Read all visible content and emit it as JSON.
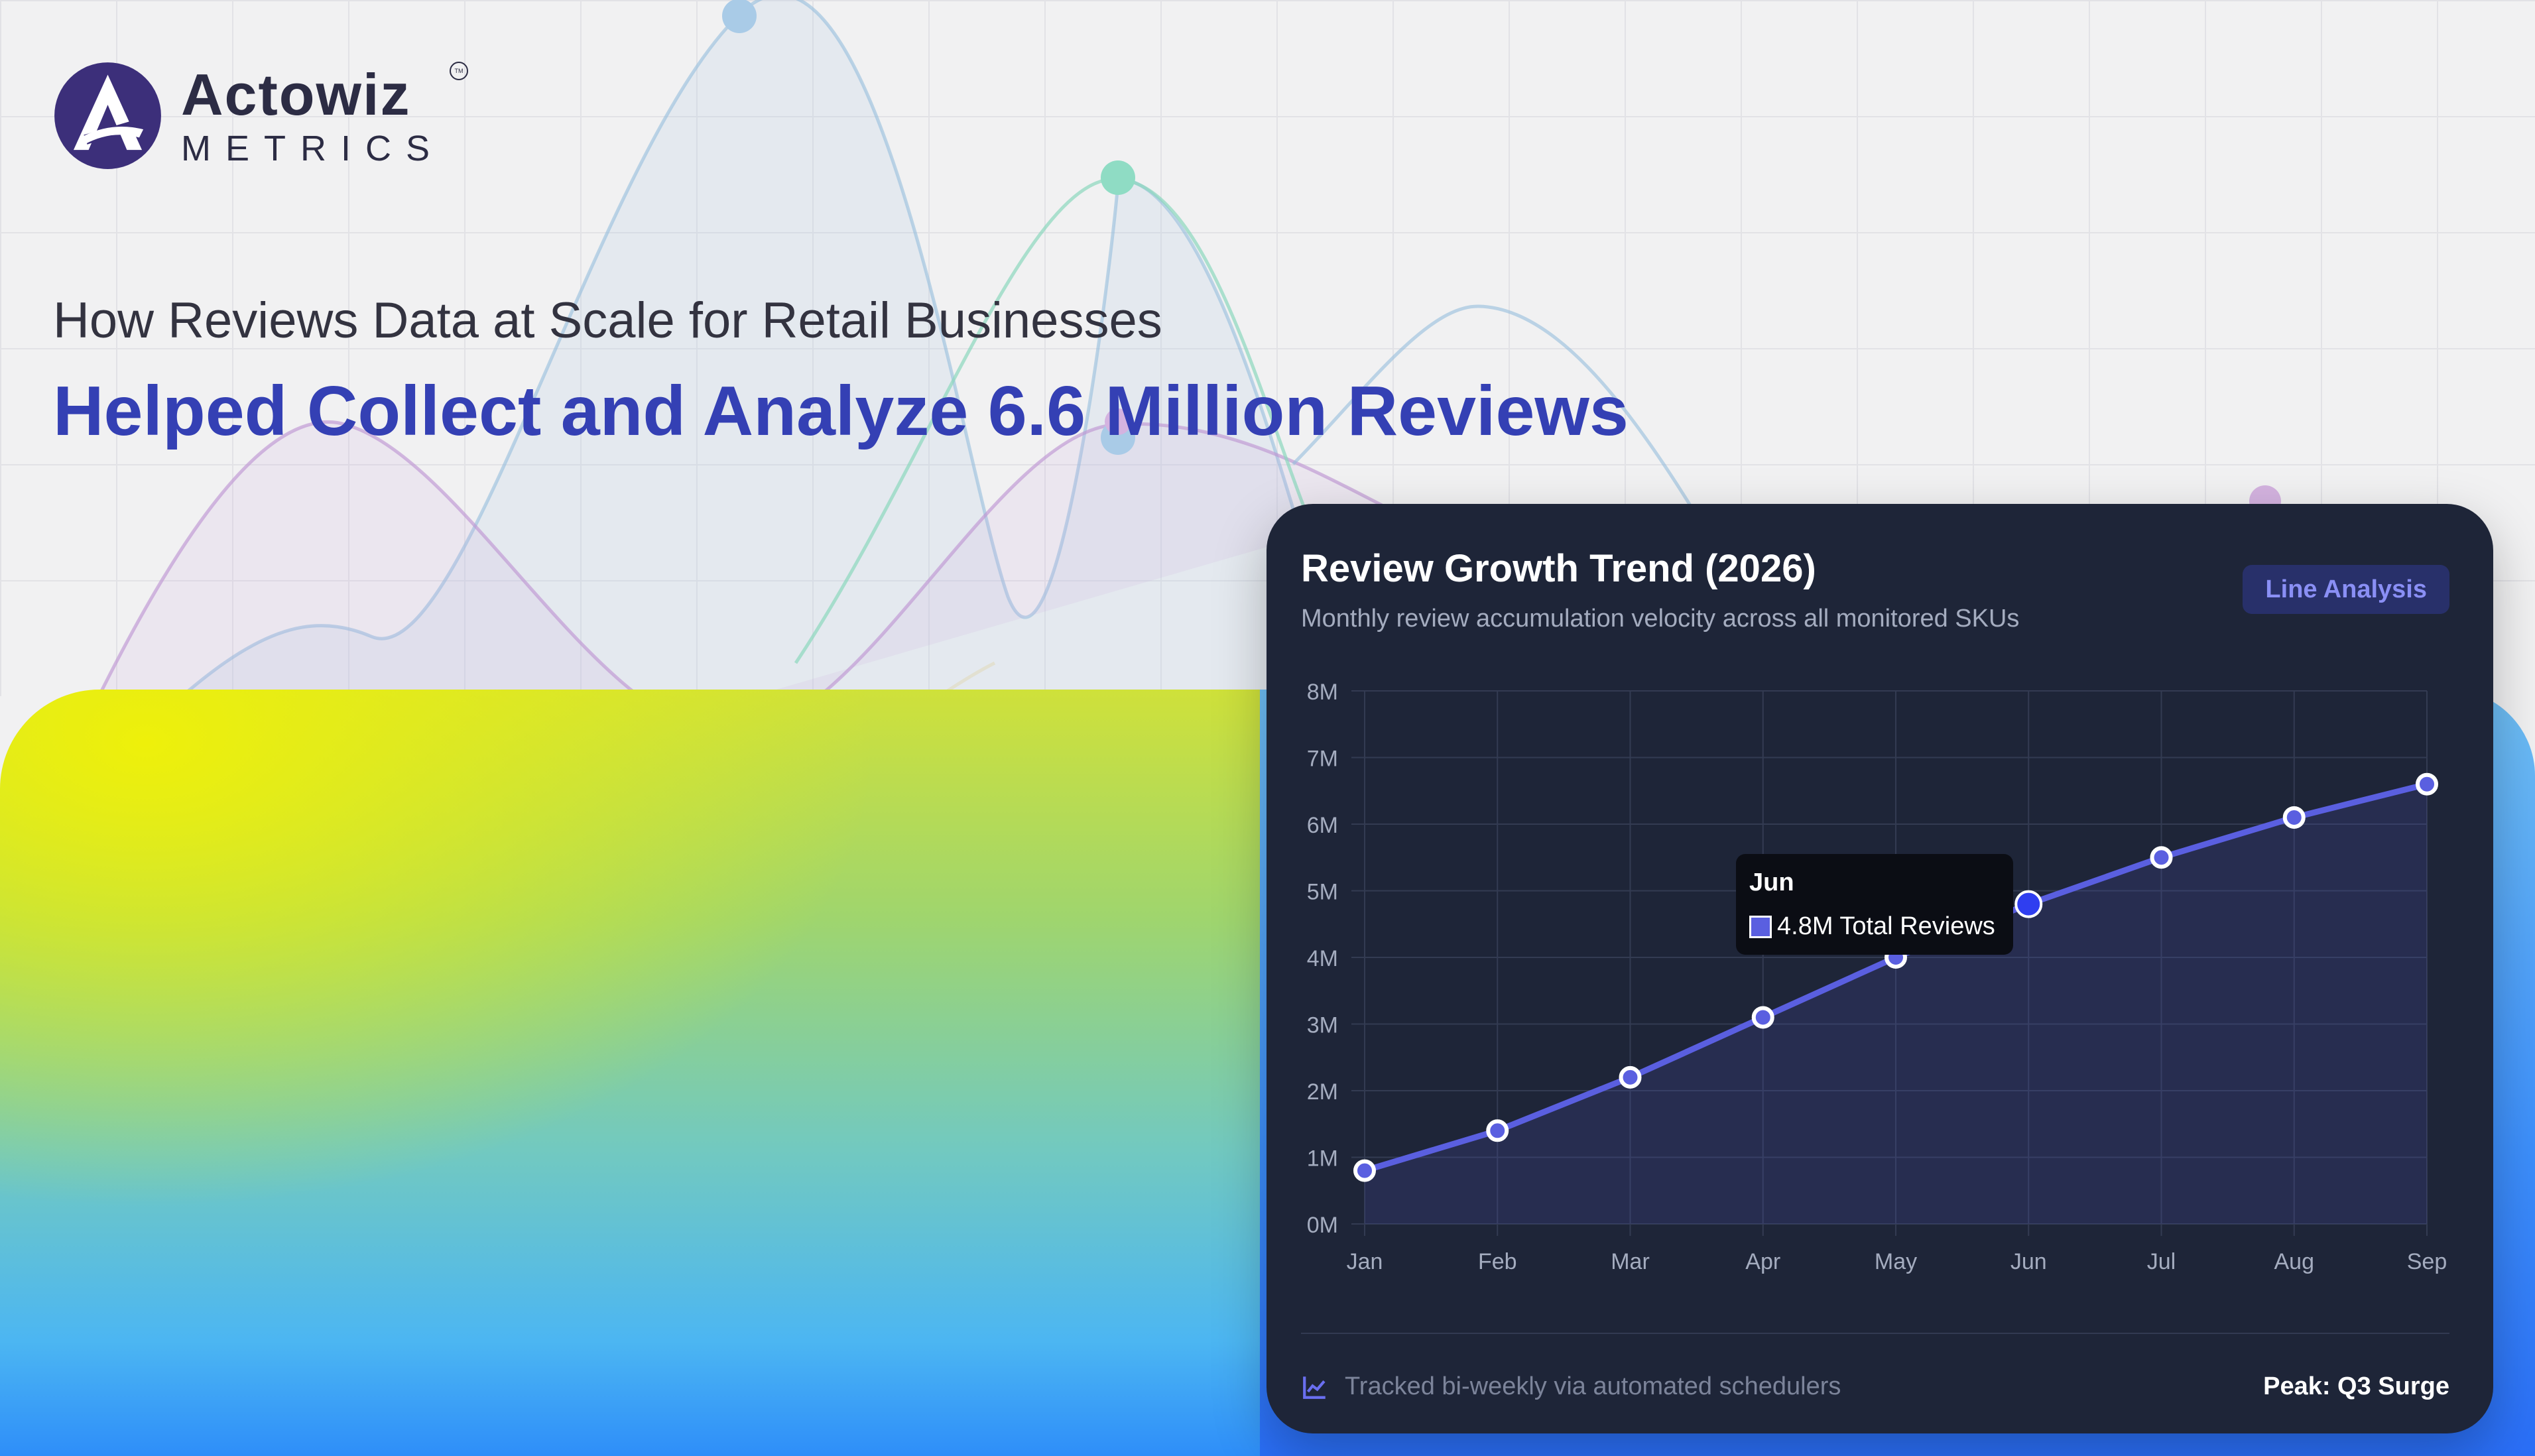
{
  "brand": {
    "name": "Actowiz",
    "sub": "METRICS",
    "tm": "TM"
  },
  "headline": {
    "line1": "How Reviews Data at Scale for Retail Businesses",
    "line2": "Helped Collect and Analyze 6.6 Million Reviews"
  },
  "colors": {
    "accent_blue": "#3440b4",
    "card_bg": "#1e2538",
    "line": "#5a5fe0",
    "highlight_point": "#2f3ef0"
  },
  "card": {
    "badge": "Line Analysis",
    "footer_text": "Tracked bi-weekly via automated schedulers",
    "footer_icon": "line-chart-icon",
    "footer_right": "Peak: Q3 Surge"
  },
  "tooltip": {
    "title": "Jun",
    "label": "4.8M Total Reviews"
  },
  "chart_data": {
    "type": "line",
    "title": "Review Growth Trend (2026)",
    "subtitle": "Monthly review accumulation velocity across all monitored SKUs",
    "categories": [
      "Jan",
      "Feb",
      "Mar",
      "Apr",
      "May",
      "Jun",
      "Jul",
      "Aug",
      "Sep"
    ],
    "series": [
      {
        "name": "Total Reviews",
        "values": [
          0.8,
          1.4,
          2.2,
          3.1,
          4.0,
          4.8,
          5.5,
          6.1,
          6.6
        ]
      }
    ],
    "y_ticks": [
      "0M",
      "1M",
      "2M",
      "3M",
      "4M",
      "5M",
      "6M",
      "7M",
      "8M"
    ],
    "ylim": [
      0,
      8
    ],
    "grid": true,
    "highlight_category": "Jun"
  }
}
